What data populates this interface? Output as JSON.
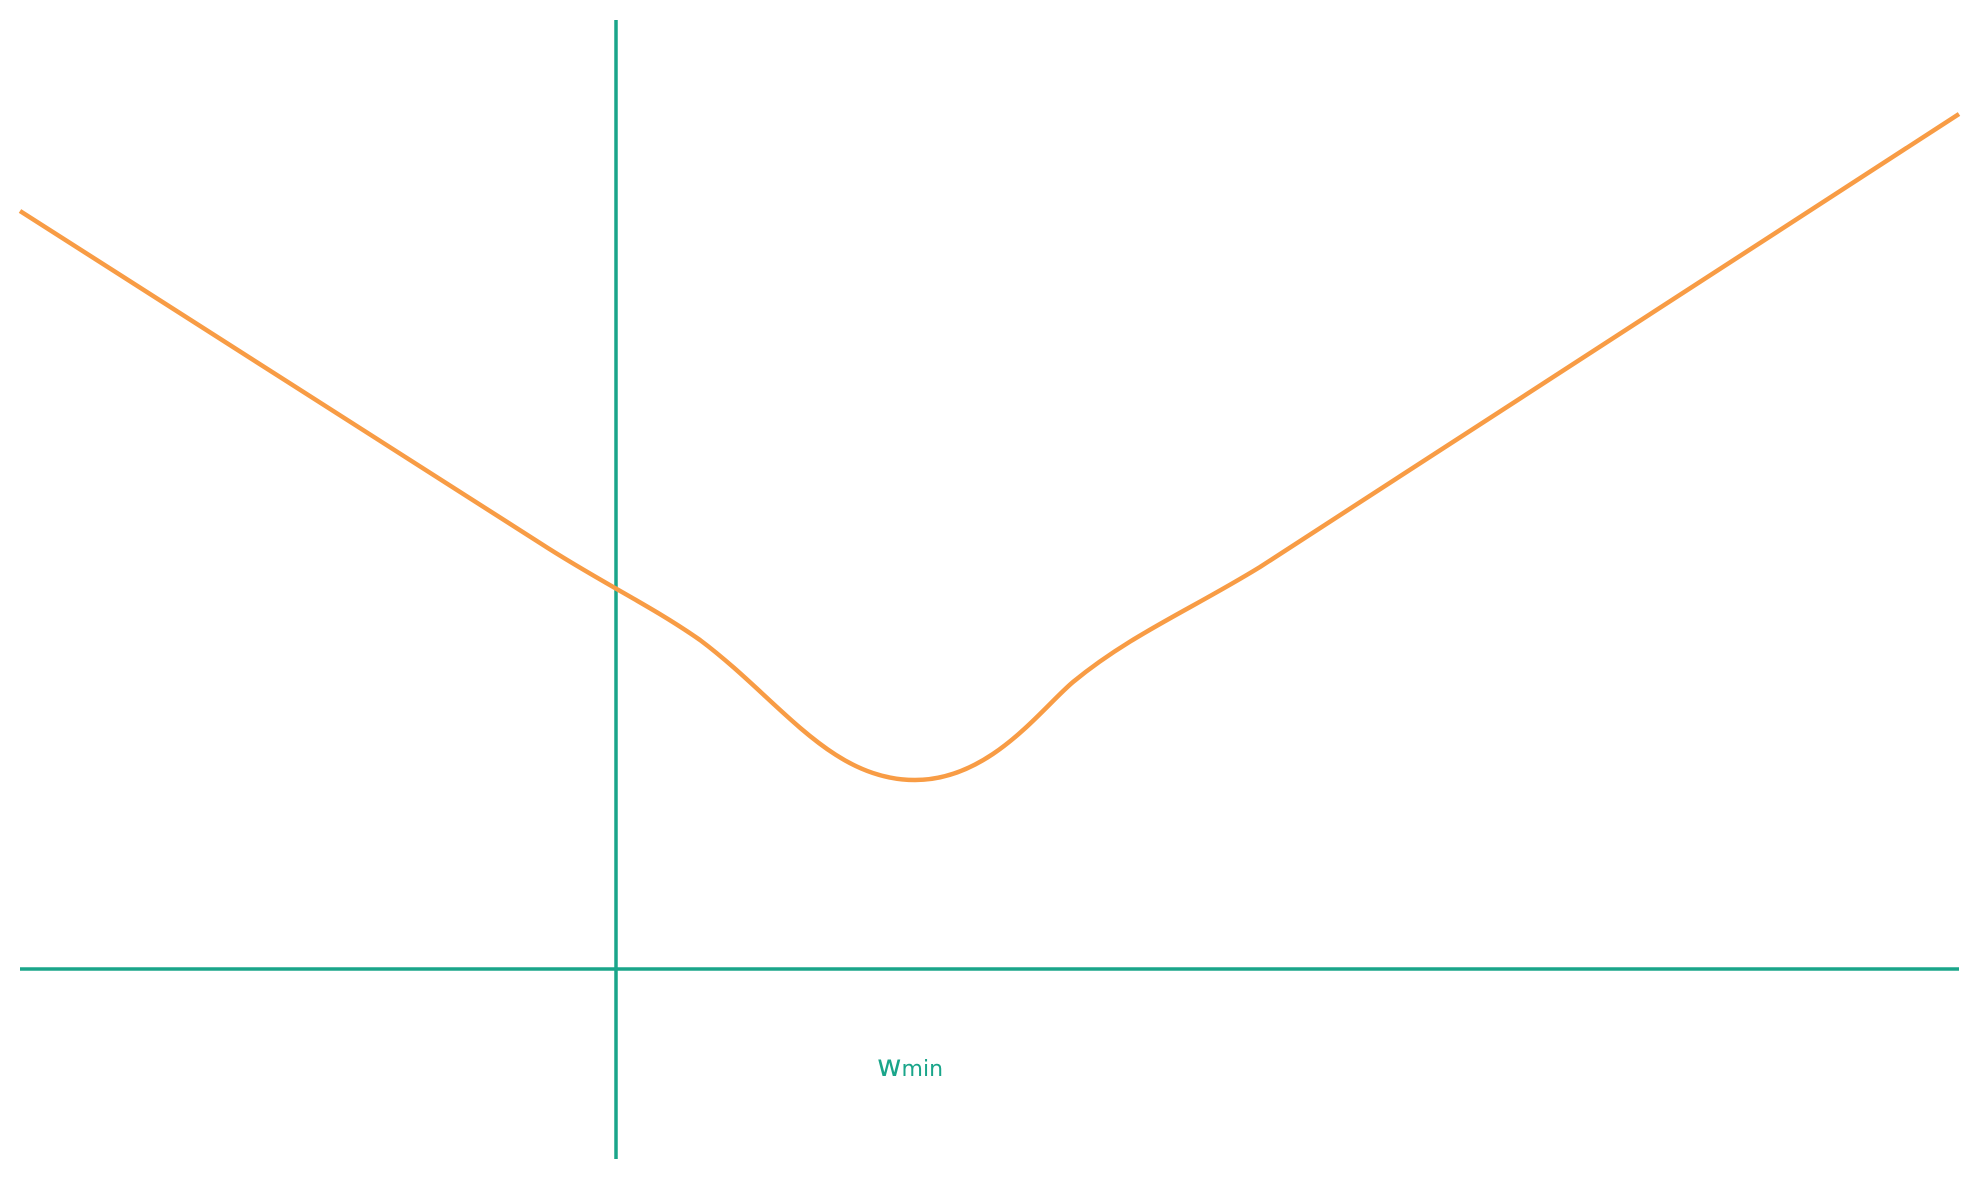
{
  "label": {
    "main": "w",
    "subscript": "min"
  }
}
